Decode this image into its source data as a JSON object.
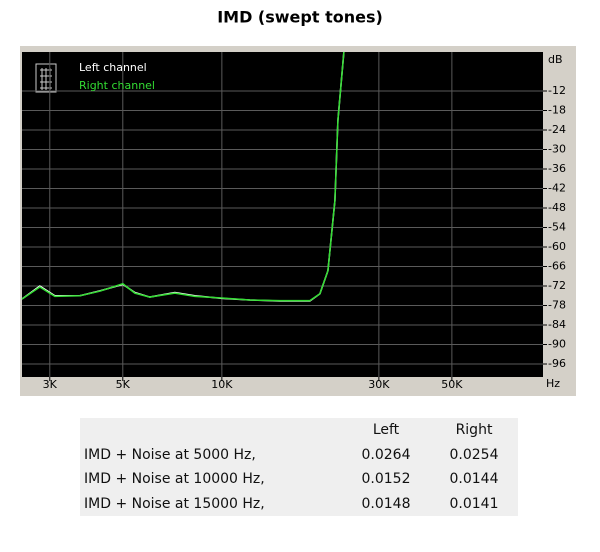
{
  "chart_data": {
    "type": "line",
    "title": "IMD (swept tones)",
    "xlabel": "Hz",
    "ylabel": "dB",
    "log_x": true,
    "grid": true,
    "background": "#000000",
    "legend": "top-left",
    "x": [
      2470,
      2798,
      3108,
      3701,
      4258,
      5002,
      5440,
      6040,
      7197,
      8278,
      10000,
      12164,
      15008,
      18512,
      19860,
      21005,
      22057,
      22525,
      23485
    ],
    "series": [
      {
        "name": "Left channel",
        "color": "#ffffff",
        "values": [
          -76,
          -72,
          -75,
          -75,
          -73.5,
          -71.5,
          -74,
          -75.4,
          -74,
          -75,
          -75.8,
          -76.3,
          -76.6,
          -76.6,
          -74.4,
          -67.3,
          -45.7,
          -21,
          0
        ]
      },
      {
        "name": "Right channel",
        "color": "#33dd33",
        "values": [
          -76,
          -72.3,
          -75.2,
          -75,
          -73.6,
          -71.3,
          -74.2,
          -75.4,
          -74.2,
          -75.2,
          -75.7,
          -76.3,
          -76.5,
          -76.5,
          -74.4,
          -67.3,
          -45.7,
          -21,
          0
        ]
      }
    ],
    "xlim": [
      2470,
      94600
    ],
    "xticks": [
      {
        "value": 3000,
        "label": "3K"
      },
      {
        "value": 5000,
        "label": "5K"
      },
      {
        "value": 10000,
        "label": "10K"
      },
      {
        "value": 30000,
        "label": "30K"
      },
      {
        "value": 50000,
        "label": "50K"
      }
    ],
    "ylim": [
      -100,
      0
    ],
    "yticks": [
      -12,
      -18,
      -24,
      -30,
      -36,
      -42,
      -48,
      -54,
      -60,
      -66,
      -72,
      -78,
      -84,
      -90,
      -96
    ]
  },
  "table": {
    "headers": [
      "Left",
      "Right"
    ],
    "rows": [
      [
        "IMD + Noise at 5000 Hz,",
        0.0264,
        0.0254
      ],
      [
        "IMD + Noise at 10000 Hz,",
        0.0152,
        0.0144
      ],
      [
        "IMD + Noise at 15000 Hz,",
        0.0148,
        0.0141
      ]
    ]
  }
}
